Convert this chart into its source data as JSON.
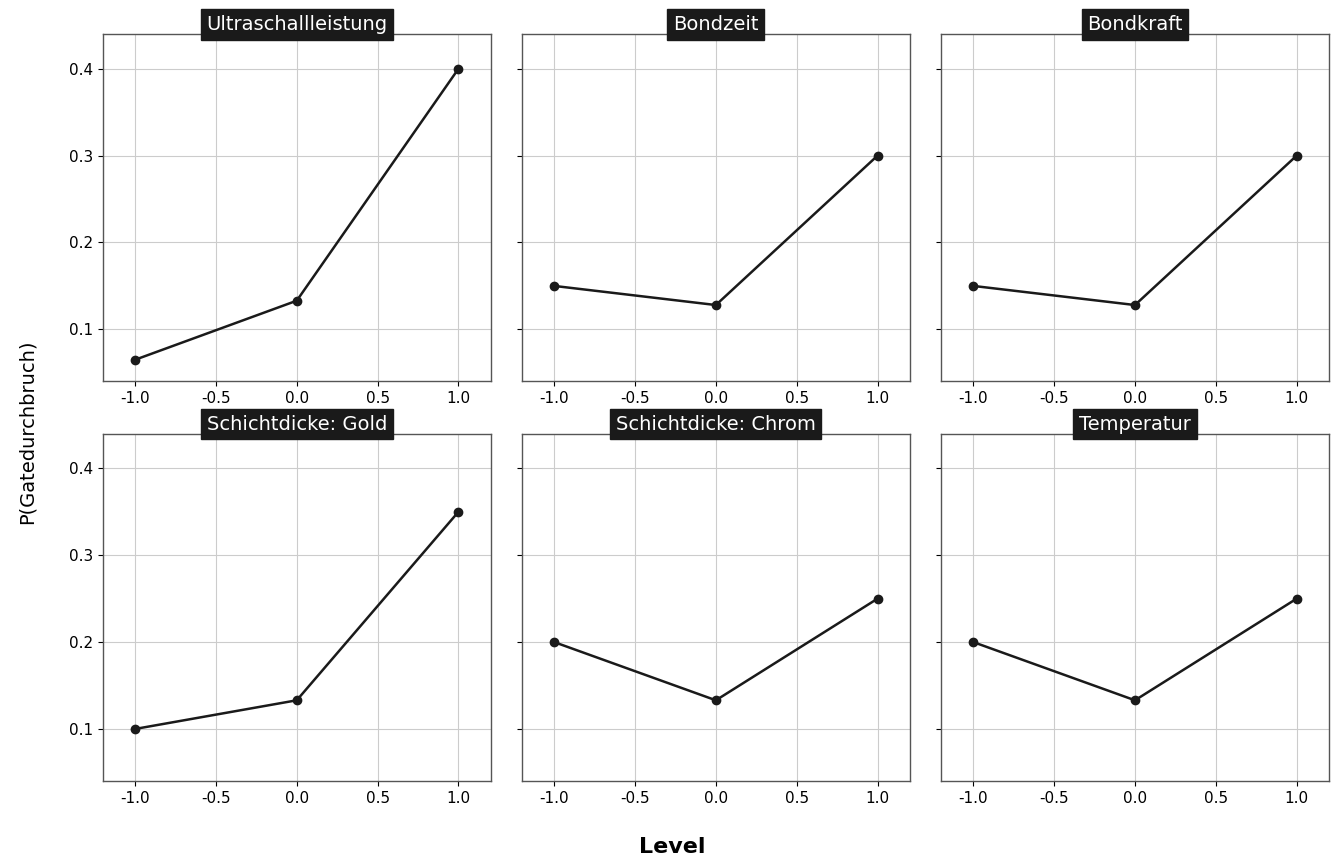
{
  "subplots": [
    {
      "title": "Ultraschallleistung",
      "x": [
        -1.0,
        0.0,
        1.0
      ],
      "y": [
        0.065,
        0.133,
        0.4
      ]
    },
    {
      "title": "Bondzeit",
      "x": [
        -1.0,
        0.0,
        1.0
      ],
      "y": [
        0.15,
        0.128,
        0.3
      ]
    },
    {
      "title": "Bondkraft",
      "x": [
        -1.0,
        0.0,
        1.0
      ],
      "y": [
        0.15,
        0.128,
        0.3
      ]
    },
    {
      "title": "Schichtdicke: Gold",
      "x": [
        -1.0,
        0.0,
        1.0
      ],
      "y": [
        0.1,
        0.133,
        0.35
      ]
    },
    {
      "title": "Schichtdicke: Chrom",
      "x": [
        -1.0,
        0.0,
        1.0
      ],
      "y": [
        0.2,
        0.133,
        0.25
      ]
    },
    {
      "title": "Temperatur",
      "x": [
        -1.0,
        0.0,
        1.0
      ],
      "y": [
        0.2,
        0.133,
        0.25
      ]
    }
  ],
  "ylabel": "P(Gatedurchbruch)",
  "xlabel": "Level",
  "ylim": [
    0.04,
    0.44
  ],
  "xlim": [
    -1.2,
    1.2
  ],
  "yticks": [
    0.1,
    0.2,
    0.3,
    0.4
  ],
  "xticks": [
    -1.0,
    -0.5,
    0.0,
    0.5,
    1.0
  ],
  "line_color": "#1a1a1a",
  "marker_size": 6,
  "marker_color": "#1a1a1a",
  "title_bg_color": "#1a1a1a",
  "title_text_color": "#ffffff",
  "grid_color": "#cccccc",
  "bg_color": "#ffffff",
  "title_fontsize": 14,
  "label_fontsize": 14,
  "tick_fontsize": 11
}
